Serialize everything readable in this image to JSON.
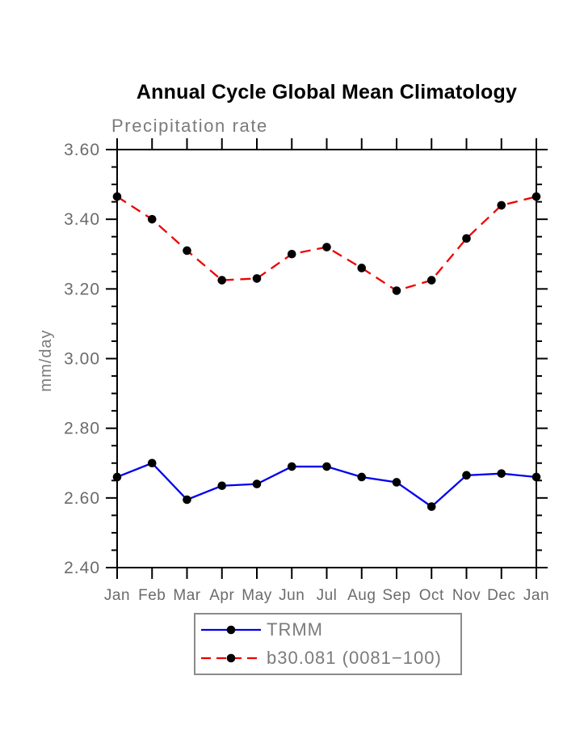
{
  "header": {
    "title": "Annual Cycle Global Mean Climatology",
    "subtitle": "Precipitation rate"
  },
  "chart_data": {
    "type": "line",
    "title": "Annual Cycle Global Mean Climatology",
    "subtitle": "Precipitation rate",
    "xlabel": "",
    "ylabel": "mm/day",
    "categories": [
      "Jan",
      "Feb",
      "Mar",
      "Apr",
      "May",
      "Jun",
      "Jul",
      "Aug",
      "Sep",
      "Oct",
      "Nov",
      "Dec",
      "Jan"
    ],
    "ylim": [
      2.4,
      3.6
    ],
    "ytick_step": 0.2,
    "yminor_step": 0.05,
    "grid": false,
    "legend_position": "bottom",
    "frame": "box-with-outward-ticks",
    "series": [
      {
        "name": "TRMM",
        "color": "#0000ee",
        "line_style": "solid",
        "marker": "filled-circle",
        "marker_color": "#000000",
        "values": [
          2.66,
          2.7,
          2.595,
          2.635,
          2.64,
          2.69,
          2.69,
          2.66,
          2.645,
          2.575,
          2.665,
          2.67,
          2.66
        ]
      },
      {
        "name": "b30.081 (0081−100)",
        "color": "#ee0000",
        "line_style": "dashed",
        "marker": "filled-circle",
        "marker_color": "#000000",
        "values": [
          3.465,
          3.4,
          3.31,
          3.225,
          3.23,
          3.3,
          3.32,
          3.26,
          3.195,
          3.225,
          3.345,
          3.44,
          3.465
        ]
      }
    ]
  },
  "colors": {
    "axis": "#000000",
    "tick_label": "#6b6b6b",
    "subtitle_text": "#7b7b7b",
    "legend_border": "#8b8b8b"
  }
}
